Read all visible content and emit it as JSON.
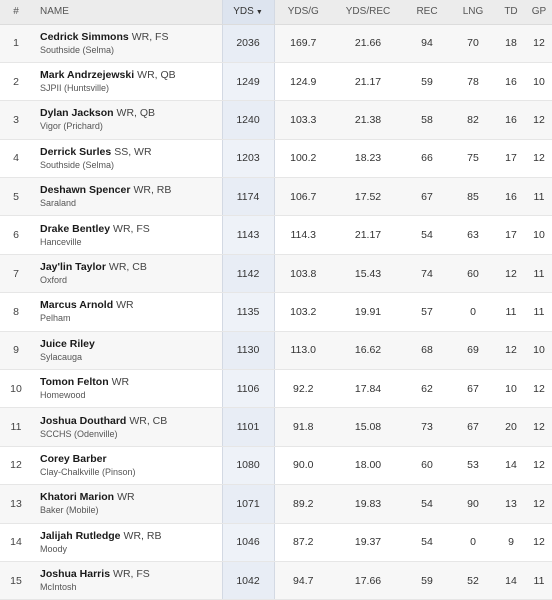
{
  "columns": {
    "rank": "#",
    "name": "NAME",
    "yds": "YDS",
    "yds_sort_icon": "sort-descending-icon",
    "yds_g": "YDS/G",
    "yds_rec": "YDS/REC",
    "rec": "REC",
    "lng": "LNG",
    "td": "TD",
    "gp": "GP"
  },
  "rows": [
    {
      "rank": "1",
      "name": "Cedrick Simmons",
      "pos": "WR, FS",
      "school": "Southside (Selma)",
      "yds": "2036",
      "yds_g": "169.7",
      "yds_rec": "21.66",
      "rec": "94",
      "lng": "70",
      "td": "18",
      "gp": "12"
    },
    {
      "rank": "2",
      "name": "Mark Andrzejewski",
      "pos": "WR, QB",
      "school": "SJPII (Huntsville)",
      "yds": "1249",
      "yds_g": "124.9",
      "yds_rec": "21.17",
      "rec": "59",
      "lng": "78",
      "td": "16",
      "gp": "10"
    },
    {
      "rank": "3",
      "name": "Dylan Jackson",
      "pos": "WR, QB",
      "school": "Vigor (Prichard)",
      "yds": "1240",
      "yds_g": "103.3",
      "yds_rec": "21.38",
      "rec": "58",
      "lng": "82",
      "td": "16",
      "gp": "12"
    },
    {
      "rank": "4",
      "name": "Derrick Surles",
      "pos": "SS, WR",
      "school": "Southside (Selma)",
      "yds": "1203",
      "yds_g": "100.2",
      "yds_rec": "18.23",
      "rec": "66",
      "lng": "75",
      "td": "17",
      "gp": "12"
    },
    {
      "rank": "5",
      "name": "Deshawn Spencer",
      "pos": "WR, RB",
      "school": "Saraland",
      "yds": "1174",
      "yds_g": "106.7",
      "yds_rec": "17.52",
      "rec": "67",
      "lng": "85",
      "td": "16",
      "gp": "11"
    },
    {
      "rank": "6",
      "name": "Drake Bentley",
      "pos": "WR, FS",
      "school": "Hanceville",
      "yds": "1143",
      "yds_g": "114.3",
      "yds_rec": "21.17",
      "rec": "54",
      "lng": "63",
      "td": "17",
      "gp": "10"
    },
    {
      "rank": "7",
      "name": "Jay'lin Taylor",
      "pos": "WR, CB",
      "school": "Oxford",
      "yds": "1142",
      "yds_g": "103.8",
      "yds_rec": "15.43",
      "rec": "74",
      "lng": "60",
      "td": "12",
      "gp": "11"
    },
    {
      "rank": "8",
      "name": "Marcus Arnold",
      "pos": "WR",
      "school": "Pelham",
      "yds": "1135",
      "yds_g": "103.2",
      "yds_rec": "19.91",
      "rec": "57",
      "lng": "0",
      "td": "11",
      "gp": "11"
    },
    {
      "rank": "9",
      "name": "Juice Riley",
      "pos": "",
      "school": "Sylacauga",
      "yds": "1130",
      "yds_g": "113.0",
      "yds_rec": "16.62",
      "rec": "68",
      "lng": "69",
      "td": "12",
      "gp": "10"
    },
    {
      "rank": "10",
      "name": "Tomon Felton",
      "pos": "WR",
      "school": "Homewood",
      "yds": "1106",
      "yds_g": "92.2",
      "yds_rec": "17.84",
      "rec": "62",
      "lng": "67",
      "td": "10",
      "gp": "12"
    },
    {
      "rank": "11",
      "name": "Joshua Douthard",
      "pos": "WR, CB",
      "school": "SCCHS (Odenville)",
      "yds": "1101",
      "yds_g": "91.8",
      "yds_rec": "15.08",
      "rec": "73",
      "lng": "67",
      "td": "20",
      "gp": "12"
    },
    {
      "rank": "12",
      "name": "Corey Barber",
      "pos": "",
      "school": "Clay-Chalkville (Pinson)",
      "yds": "1080",
      "yds_g": "90.0",
      "yds_rec": "18.00",
      "rec": "60",
      "lng": "53",
      "td": "14",
      "gp": "12"
    },
    {
      "rank": "13",
      "name": "Khatori Marion",
      "pos": "WR",
      "school": "Baker (Mobile)",
      "yds": "1071",
      "yds_g": "89.2",
      "yds_rec": "19.83",
      "rec": "54",
      "lng": "90",
      "td": "13",
      "gp": "12"
    },
    {
      "rank": "14",
      "name": "Jalijah Rutledge",
      "pos": "WR, RB",
      "school": "Moody",
      "yds": "1046",
      "yds_g": "87.2",
      "yds_rec": "19.37",
      "rec": "54",
      "lng": "0",
      "td": "9",
      "gp": "12"
    },
    {
      "rank": "15",
      "name": "Joshua Harris",
      "pos": "WR, FS",
      "school": "McIntosh",
      "yds": "1042",
      "yds_g": "94.7",
      "yds_rec": "17.66",
      "rec": "59",
      "lng": "52",
      "td": "14",
      "gp": "11"
    }
  ]
}
